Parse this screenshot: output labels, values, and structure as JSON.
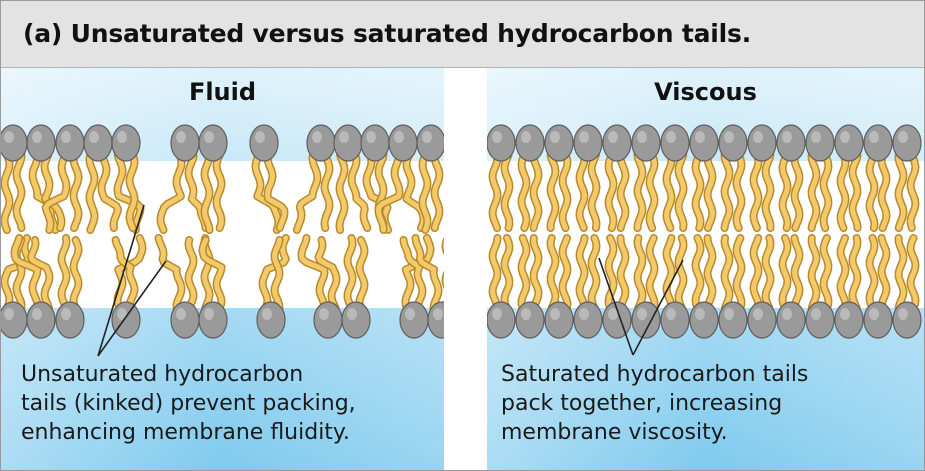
{
  "header": {
    "title": "(a) Unsaturated versus saturated hydrocarbon tails."
  },
  "panels": [
    {
      "title": "Fluid",
      "caption_lines": [
        "Unsaturated hydrocarbon",
        "tails (kinked) prevent packing,",
        "enhancing membrane fluidity."
      ]
    },
    {
      "title": "Viscous",
      "caption_lines": [
        "Saturated hydrocarbon tails",
        "pack together, increasing",
        "membrane viscosity."
      ]
    }
  ],
  "colors": {
    "water_gradient_top": "#dff2fb",
    "water_gradient_bottom": "#7fcaee",
    "head": "#9a9a9a",
    "head_outline": "#5e5e5e",
    "tail": "#f3c96a",
    "tail_outline": "#b78a2c",
    "header_bg": "#e3e3e3"
  }
}
